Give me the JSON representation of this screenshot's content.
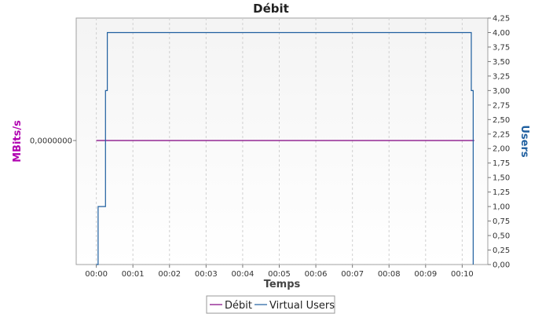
{
  "chart_data": {
    "type": "line",
    "title": "Débit",
    "xlabel": "Temps",
    "ylabel_left": "MBits/s",
    "ylabel_right": "Users",
    "x_ticks": [
      "00:00",
      "00:01",
      "00:02",
      "00:03",
      "00:04",
      "00:05",
      "00:06",
      "00:07",
      "00:08",
      "00:09",
      "00:10"
    ],
    "x_range_minutes": [
      -0.55,
      10.7
    ],
    "left_y_ticks": [
      "0,0000000"
    ],
    "right_y_ticks": [
      "0,00",
      "0,25",
      "0,50",
      "0,75",
      "1,00",
      "1,25",
      "1,50",
      "1,75",
      "2,00",
      "2,25",
      "2,50",
      "2,75",
      "3,00",
      "3,25",
      "3,50",
      "3,75",
      "4,00",
      "4,25"
    ],
    "right_ylim": [
      0,
      4.25
    ],
    "grid": true,
    "legend_position": "bottom",
    "series": [
      {
        "name": "Débit",
        "color": "#800080",
        "axis": "left",
        "x_minutes": [
          0.0,
          10.33
        ],
        "y": [
          0.0,
          0.0
        ]
      },
      {
        "name": "Virtual Users",
        "color": "#1f5f9f",
        "axis": "right",
        "step": true,
        "x_minutes": [
          0.0,
          0.05,
          0.05,
          0.25,
          0.25,
          0.3,
          0.3,
          10.25,
          10.25,
          10.3,
          10.3
        ],
        "y": [
          0,
          0,
          1,
          1,
          3,
          3,
          4,
          4,
          3,
          3,
          0
        ]
      }
    ]
  }
}
